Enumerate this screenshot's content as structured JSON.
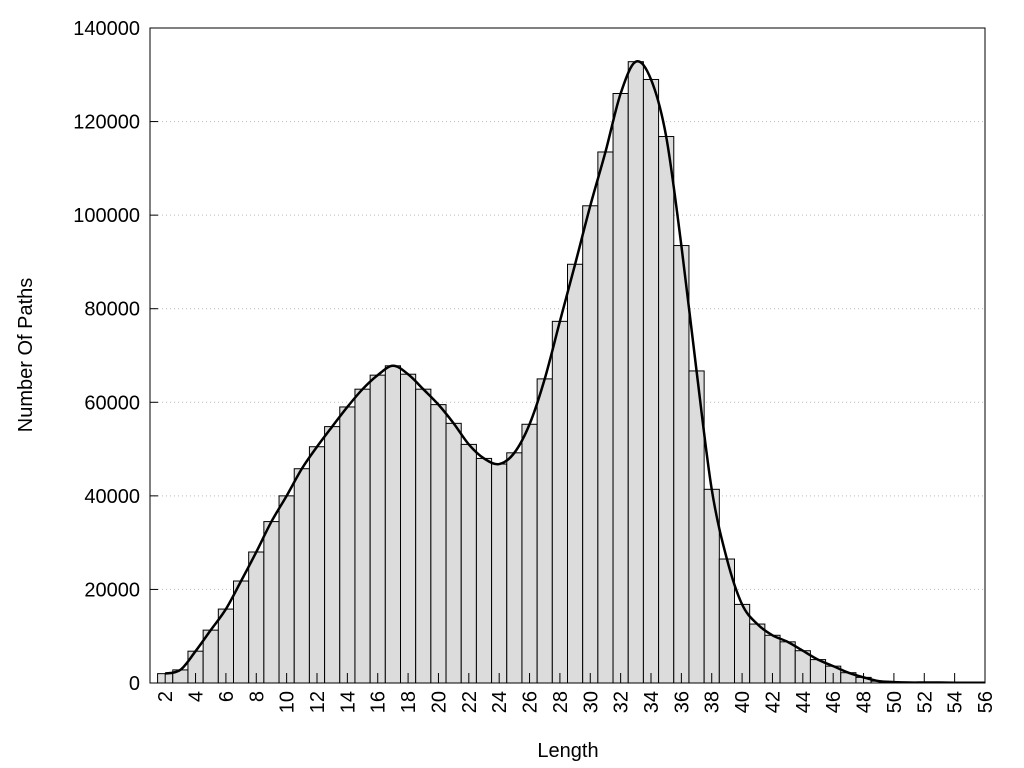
{
  "chart_data": {
    "type": "bar",
    "x_label": "Length",
    "y_label": "Number Of Paths",
    "x": [
      2,
      3,
      4,
      5,
      6,
      7,
      8,
      9,
      10,
      11,
      12,
      13,
      14,
      15,
      16,
      17,
      18,
      19,
      20,
      21,
      22,
      23,
      24,
      25,
      26,
      27,
      28,
      29,
      30,
      31,
      32,
      33,
      34,
      35,
      36,
      37,
      38,
      39,
      40,
      41,
      42,
      43,
      44,
      45,
      46,
      47,
      48,
      49,
      50,
      51,
      52,
      53,
      54,
      55,
      56
    ],
    "values": [
      2000,
      2800,
      6800,
      11300,
      15800,
      21800,
      28000,
      34500,
      40000,
      45800,
      50500,
      54800,
      59000,
      62800,
      65800,
      67800,
      66000,
      62800,
      59500,
      55500,
      51000,
      48000,
      46800,
      49200,
      55300,
      65000,
      77300,
      89500,
      102000,
      113500,
      126000,
      132800,
      129000,
      116800,
      93500,
      66700,
      41400,
      26500,
      16800,
      12600,
      10200,
      8800,
      6900,
      5000,
      3600,
      2200,
      1200,
      400,
      200,
      100,
      100,
      100,
      50,
      50,
      50
    ],
    "color": "#dcdcdc",
    "line_color": "#000000",
    "xlim": [
      1,
      56
    ],
    "ylim": [
      0,
      140000
    ],
    "xticks": [
      2,
      4,
      6,
      8,
      10,
      12,
      14,
      16,
      18,
      20,
      22,
      24,
      26,
      28,
      30,
      32,
      34,
      36,
      38,
      40,
      42,
      44,
      46,
      48,
      50,
      52,
      54,
      56
    ],
    "yticks": [
      0,
      20000,
      40000,
      60000,
      80000,
      100000,
      120000,
      140000
    ],
    "grid": true
  }
}
